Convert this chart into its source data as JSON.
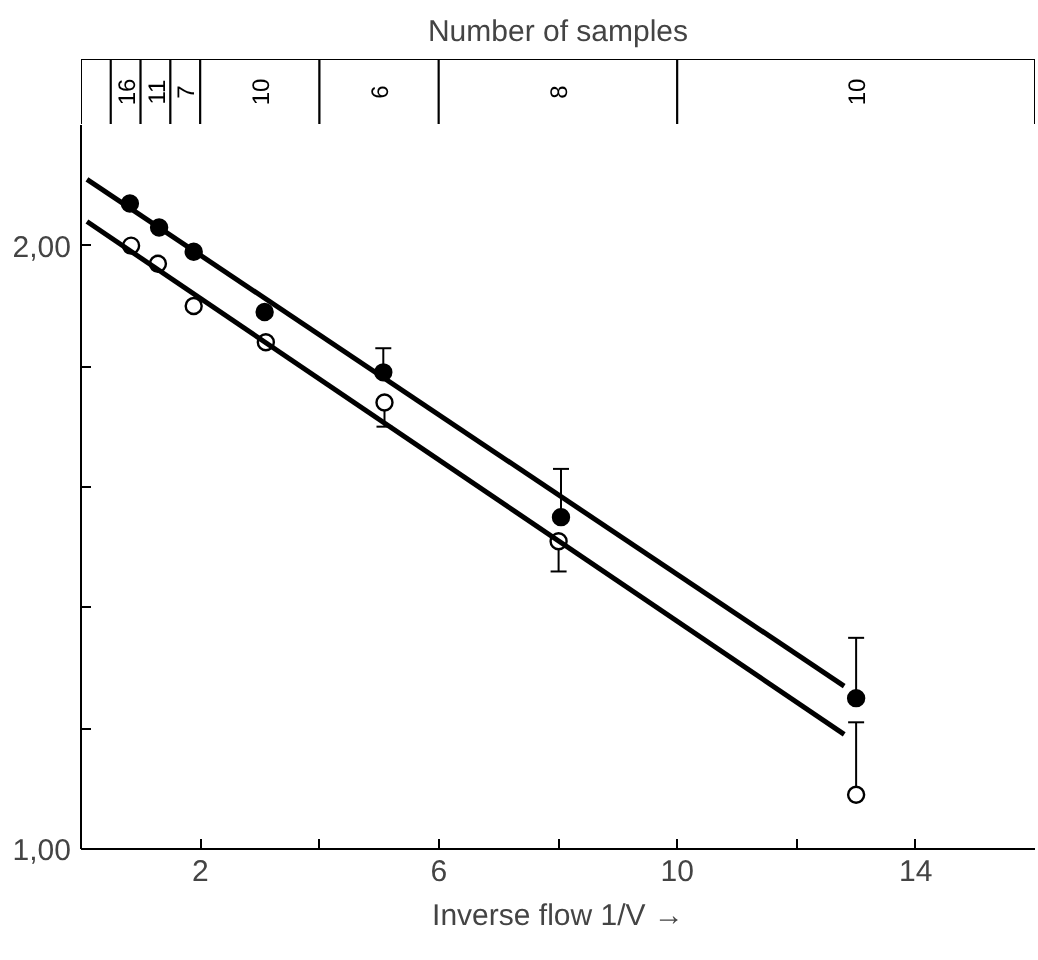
{
  "chart_data": [
    {
      "type": "bar",
      "orientation": "horizontal",
      "stacked": true,
      "title": "Number of samples",
      "categories": [
        null
      ],
      "xlim": [
        0,
        16
      ],
      "tick_labels": false,
      "series": [
        {
          "color": "#ffffff",
          "values": [
            0.5
          ]
        },
        {
          "color": "#ffffff",
          "values": [
            0.5
          ]
        },
        {
          "color": "#ffffff",
          "values": [
            0.5
          ]
        },
        {
          "color": "#ffffff",
          "values": [
            0.5
          ]
        },
        {
          "color": "#ffffff",
          "values": [
            2
          ]
        },
        {
          "color": "#ffffff",
          "values": [
            2
          ]
        },
        {
          "color": "#ffffff",
          "values": [
            4
          ]
        },
        {
          "color": "#ffffff",
          "values": [
            6
          ]
        }
      ],
      "annotations": [
        "16",
        "11",
        "7",
        "10",
        "6",
        "8",
        "10"
      ]
    },
    {
      "type": "scatter",
      "xlabel": "Inverse flow 1/V →",
      "xlim": [
        0,
        16
      ],
      "ylim": [
        1.0,
        2.2
      ],
      "xticks": [
        {
          "value": 2,
          "label": "2"
        },
        {
          "value": 4,
          "label": null
        },
        {
          "value": 6,
          "label": "6"
        },
        {
          "value": 8,
          "label": null
        },
        {
          "value": 10,
          "label": "10"
        },
        {
          "value": 12,
          "label": null
        },
        {
          "value": 14,
          "label": "14"
        }
      ],
      "yticks": [
        {
          "value": 1.0,
          "label": "1,00"
        },
        {
          "value": 1.2,
          "label": null
        },
        {
          "value": 1.4,
          "label": null
        },
        {
          "value": 1.6,
          "label": null
        },
        {
          "value": 1.8,
          "label": null
        },
        {
          "value": 2.0,
          "label": "2,00"
        }
      ],
      "marker": "circle",
      "grid": false,
      "series": [
        {
          "color": "#000000",
          "x": [
            0.82,
            1.31,
            1.89,
            3.08,
            5.07,
            8.05,
            13.0
          ],
          "values": [
            2.07,
            2.03,
            1.99,
            1.89,
            1.79,
            1.55,
            1.25
          ],
          "errors": [
            null,
            null,
            null,
            null,
            [
              1.79,
              1.83
            ],
            [
              1.55,
              1.63
            ],
            [
              1.25,
              1.35
            ]
          ]
        },
        {
          "color": "#ffffff",
          "x": [
            0.84,
            1.29,
            1.89,
            3.1,
            5.09,
            8.01,
            13.0
          ],
          "values": [
            2.0,
            1.97,
            1.9,
            1.84,
            1.74,
            1.51,
            1.09
          ],
          "errors": [
            null,
            null,
            null,
            null,
            [
              1.7,
              1.74
            ],
            [
              1.46,
              1.51
            ],
            [
              1.09,
              1.21
            ]
          ]
        },
        {
          "type": "line",
          "marker": "none",
          "color": "#000000",
          "x": [
            0.1,
            12.8
          ],
          "values": [
            2.11,
            1.27
          ]
        },
        {
          "type": "line",
          "marker": "none",
          "color": "#000000",
          "x": [
            0.1,
            12.8
          ],
          "values": [
            2.04,
            1.19
          ]
        }
      ]
    }
  ]
}
